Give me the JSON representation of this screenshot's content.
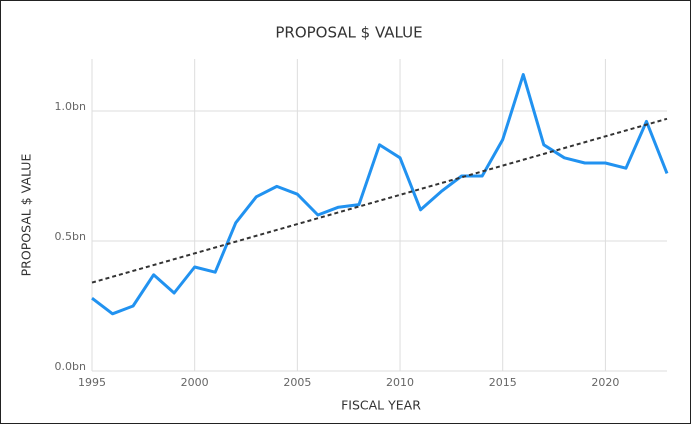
{
  "chart_data": {
    "type": "line",
    "title": "PROPOSAL $ VALUE",
    "x_label": "FISCAL YEAR",
    "y_label": "PROPOSAL $ VALUE",
    "x": [
      1995,
      1996,
      1997,
      1998,
      1999,
      2000,
      2001,
      2002,
      2003,
      2004,
      2005,
      2006,
      2007,
      2008,
      2009,
      2010,
      2011,
      2012,
      2013,
      2014,
      2015,
      2016,
      2017,
      2018,
      2019,
      2020,
      2021,
      2022,
      2023
    ],
    "series": [
      {
        "color": "#2192f0",
        "values": [
          0.28,
          0.22,
          0.25,
          0.37,
          0.3,
          0.4,
          0.38,
          0.57,
          0.67,
          0.71,
          0.68,
          0.6,
          0.63,
          0.64,
          0.87,
          0.82,
          0.62,
          0.69,
          0.75,
          0.75,
          0.89,
          1.14,
          0.87,
          0.82,
          0.8,
          0.8,
          0.78,
          0.96,
          0.76
        ]
      }
    ],
    "trend": {
      "x": [
        1995,
        2023
      ],
      "values": [
        0.34,
        0.97
      ],
      "color": "#333333"
    },
    "xlim": [
      1995,
      2023
    ],
    "xticks": [
      1995,
      2000,
      2005,
      2010,
      2015,
      2020
    ],
    "ylim": [
      0,
      1.2
    ],
    "yticks": [
      {
        "value": 0,
        "label": "0.0bn"
      },
      {
        "value": 0.5,
        "label": "0.5bn"
      },
      {
        "value": 1.0,
        "label": "1.0bn"
      }
    ],
    "grid": true
  }
}
